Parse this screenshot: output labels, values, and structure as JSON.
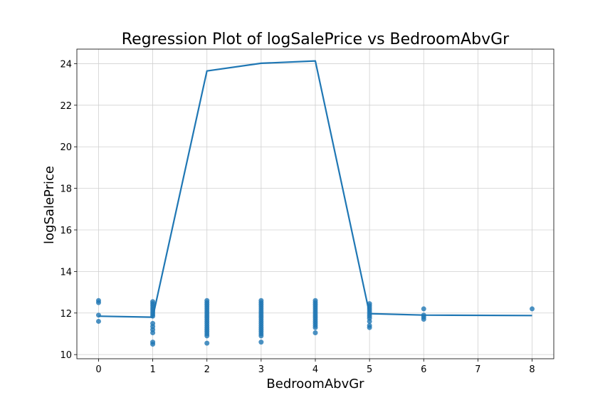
{
  "chart_data": {
    "type": "scatter",
    "title": "Regression Plot of logSalePrice vs BedroomAbvGr",
    "xlabel": "BedroomAbvGr",
    "ylabel": "logSalePrice",
    "xlim": [
      -0.4,
      8.4
    ],
    "ylim": [
      9.8,
      24.7
    ],
    "xticks": [
      0,
      1,
      2,
      3,
      4,
      5,
      6,
      7,
      8
    ],
    "yticks": [
      10,
      12,
      14,
      16,
      18,
      20,
      22,
      24
    ],
    "grid": true,
    "colors": {
      "points": "#1f77b4",
      "line": "#1f77b4"
    },
    "points": [
      {
        "x": 0,
        "y": 12.6
      },
      {
        "x": 0,
        "y": 12.5
      },
      {
        "x": 0,
        "y": 11.9
      },
      {
        "x": 0,
        "y": 11.6
      },
      {
        "x": 1,
        "y": 12.55
      },
      {
        "x": 1,
        "y": 12.45
      },
      {
        "x": 1,
        "y": 12.35
      },
      {
        "x": 1,
        "y": 12.25
      },
      {
        "x": 1,
        "y": 12.15
      },
      {
        "x": 1,
        "y": 12.05
      },
      {
        "x": 1,
        "y": 11.95
      },
      {
        "x": 1,
        "y": 11.85
      },
      {
        "x": 1,
        "y": 11.5
      },
      {
        "x": 1,
        "y": 11.35
      },
      {
        "x": 1,
        "y": 11.2
      },
      {
        "x": 1,
        "y": 11.05
      },
      {
        "x": 1,
        "y": 10.6
      },
      {
        "x": 1,
        "y": 10.5
      },
      {
        "x": 2,
        "y": 12.6
      },
      {
        "x": 2,
        "y": 12.5
      },
      {
        "x": 2,
        "y": 12.4
      },
      {
        "x": 2,
        "y": 12.3
      },
      {
        "x": 2,
        "y": 12.2
      },
      {
        "x": 2,
        "y": 12.1
      },
      {
        "x": 2,
        "y": 12.0
      },
      {
        "x": 2,
        "y": 11.9
      },
      {
        "x": 2,
        "y": 11.8
      },
      {
        "x": 2,
        "y": 11.7
      },
      {
        "x": 2,
        "y": 11.6
      },
      {
        "x": 2,
        "y": 11.5
      },
      {
        "x": 2,
        "y": 11.4
      },
      {
        "x": 2,
        "y": 11.3
      },
      {
        "x": 2,
        "y": 11.2
      },
      {
        "x": 2,
        "y": 11.1
      },
      {
        "x": 2,
        "y": 11.0
      },
      {
        "x": 2,
        "y": 10.9
      },
      {
        "x": 2,
        "y": 10.55
      },
      {
        "x": 3,
        "y": 12.6
      },
      {
        "x": 3,
        "y": 12.5
      },
      {
        "x": 3,
        "y": 12.4
      },
      {
        "x": 3,
        "y": 12.3
      },
      {
        "x": 3,
        "y": 12.2
      },
      {
        "x": 3,
        "y": 12.1
      },
      {
        "x": 3,
        "y": 12.0
      },
      {
        "x": 3,
        "y": 11.9
      },
      {
        "x": 3,
        "y": 11.8
      },
      {
        "x": 3,
        "y": 11.7
      },
      {
        "x": 3,
        "y": 11.6
      },
      {
        "x": 3,
        "y": 11.5
      },
      {
        "x": 3,
        "y": 11.4
      },
      {
        "x": 3,
        "y": 11.3
      },
      {
        "x": 3,
        "y": 11.2
      },
      {
        "x": 3,
        "y": 11.1
      },
      {
        "x": 3,
        "y": 11.0
      },
      {
        "x": 3,
        "y": 10.9
      },
      {
        "x": 3,
        "y": 10.6
      },
      {
        "x": 4,
        "y": 12.6
      },
      {
        "x": 4,
        "y": 12.5
      },
      {
        "x": 4,
        "y": 12.4
      },
      {
        "x": 4,
        "y": 12.3
      },
      {
        "x": 4,
        "y": 12.2
      },
      {
        "x": 4,
        "y": 12.1
      },
      {
        "x": 4,
        "y": 12.0
      },
      {
        "x": 4,
        "y": 11.9
      },
      {
        "x": 4,
        "y": 11.8
      },
      {
        "x": 4,
        "y": 11.7
      },
      {
        "x": 4,
        "y": 11.6
      },
      {
        "x": 4,
        "y": 11.5
      },
      {
        "x": 4,
        "y": 11.4
      },
      {
        "x": 4,
        "y": 11.3
      },
      {
        "x": 4,
        "y": 11.05
      },
      {
        "x": 5,
        "y": 12.45
      },
      {
        "x": 5,
        "y": 12.35
      },
      {
        "x": 5,
        "y": 12.25
      },
      {
        "x": 5,
        "y": 12.15
      },
      {
        "x": 5,
        "y": 12.05
      },
      {
        "x": 5,
        "y": 11.95
      },
      {
        "x": 5,
        "y": 11.85
      },
      {
        "x": 5,
        "y": 11.75
      },
      {
        "x": 5,
        "y": 11.6
      },
      {
        "x": 5,
        "y": 11.4
      },
      {
        "x": 5,
        "y": 11.3
      },
      {
        "x": 6,
        "y": 12.2
      },
      {
        "x": 6,
        "y": 11.9
      },
      {
        "x": 6,
        "y": 11.8
      },
      {
        "x": 6,
        "y": 11.7
      },
      {
        "x": 8,
        "y": 12.2
      }
    ],
    "line": [
      {
        "x": 0,
        "y": 11.85
      },
      {
        "x": 1,
        "y": 11.8
      },
      {
        "x": 2,
        "y": 23.65
      },
      {
        "x": 3,
        "y": 24.02
      },
      {
        "x": 4,
        "y": 24.13
      },
      {
        "x": 5,
        "y": 11.97
      },
      {
        "x": 6,
        "y": 11.9
      },
      {
        "x": 8,
        "y": 11.88
      }
    ]
  }
}
